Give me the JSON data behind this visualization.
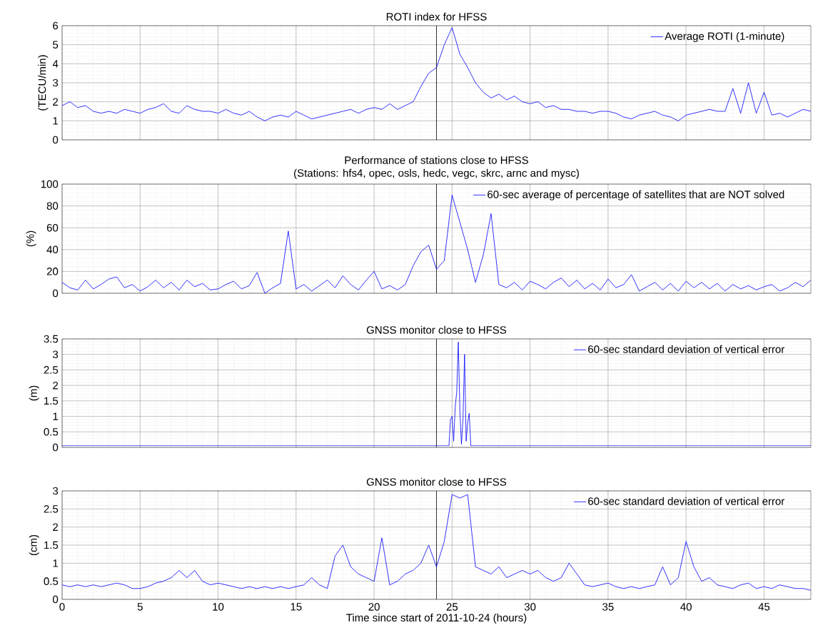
{
  "chart_data": [
    {
      "type": "line",
      "title": "ROTI index for HFSS",
      "ylabel": "(TECU/min)",
      "xlim": [
        0,
        48
      ],
      "xticks": [
        0,
        5,
        10,
        15,
        20,
        25,
        30,
        35,
        40,
        45
      ],
      "ylim": [
        0,
        6
      ],
      "yticks": [
        0,
        1,
        2,
        3,
        4,
        5,
        6
      ],
      "grid": true,
      "legend": "top right",
      "tick_labels": "y",
      "marker": "none",
      "line_style": "solid",
      "ref_lines": [
        {
          "axis": "x",
          "value": 24,
          "color": "#000000"
        }
      ],
      "x": [
        0,
        0.5,
        1,
        1.5,
        2,
        2.5,
        3,
        3.5,
        4,
        4.5,
        5,
        5.5,
        6,
        6.5,
        7,
        7.5,
        8,
        8.5,
        9,
        9.5,
        10,
        10.5,
        11,
        11.5,
        12,
        12.5,
        13,
        13.5,
        14,
        14.5,
        15,
        15.5,
        16,
        16.5,
        17,
        17.5,
        18,
        18.5,
        19,
        19.5,
        20,
        20.5,
        21,
        21.5,
        22,
        22.5,
        23,
        23.5,
        24,
        24.5,
        25,
        25.5,
        26,
        26.5,
        27,
        27.5,
        28,
        28.5,
        29,
        29.5,
        30,
        30.5,
        31,
        31.5,
        32,
        32.5,
        33,
        33.5,
        34,
        34.5,
        35,
        35.5,
        36,
        36.5,
        37,
        37.5,
        38,
        38.5,
        39,
        39.5,
        40,
        40.5,
        41,
        41.5,
        42,
        42.5,
        43,
        43.5,
        44,
        44.5,
        45,
        45.5,
        46,
        46.5,
        47,
        47.5,
        48
      ],
      "series": [
        {
          "name": "Average ROTI (1-minute)",
          "color": "#0000ff",
          "values": [
            1.8,
            2.0,
            1.7,
            1.8,
            1.5,
            1.4,
            1.5,
            1.4,
            1.6,
            1.5,
            1.4,
            1.6,
            1.7,
            1.9,
            1.5,
            1.4,
            1.8,
            1.6,
            1.5,
            1.5,
            1.4,
            1.6,
            1.4,
            1.3,
            1.5,
            1.2,
            1.0,
            1.2,
            1.3,
            1.2,
            1.5,
            1.3,
            1.1,
            1.2,
            1.3,
            1.4,
            1.5,
            1.6,
            1.4,
            1.6,
            1.7,
            1.6,
            1.9,
            1.6,
            1.8,
            2.0,
            2.8,
            3.5,
            3.8,
            5.0,
            5.9,
            4.5,
            3.8,
            3.0,
            2.5,
            2.2,
            2.4,
            2.1,
            2.3,
            2.0,
            1.9,
            2.0,
            1.7,
            1.8,
            1.6,
            1.6,
            1.5,
            1.5,
            1.4,
            1.5,
            1.5,
            1.4,
            1.2,
            1.1,
            1.3,
            1.4,
            1.5,
            1.3,
            1.2,
            1.0,
            1.3,
            1.4,
            1.5,
            1.6,
            1.5,
            1.5,
            2.7,
            1.4,
            3.0,
            1.4,
            2.5,
            1.3,
            1.4,
            1.2,
            1.4,
            1.6,
            1.5
          ]
        }
      ]
    },
    {
      "type": "line",
      "title": "Performance of stations close to HFSS",
      "subtitle": "(Stations: hfs4, opec, osls, hedc, vegc, skrc, arnc and mysc)",
      "ylabel": "(%)",
      "xlim": [
        0,
        48
      ],
      "xticks": [
        0,
        5,
        10,
        15,
        20,
        25,
        30,
        35,
        40,
        45
      ],
      "ylim": [
        0,
        100
      ],
      "yticks": [
        0,
        20,
        40,
        60,
        80,
        100
      ],
      "grid": true,
      "legend": "top right",
      "tick_labels": "y",
      "marker": "none",
      "line_style": "solid",
      "ref_lines": [
        {
          "axis": "x",
          "value": 24,
          "color": "#000000"
        }
      ],
      "x": [
        0,
        0.5,
        1,
        1.5,
        2,
        2.5,
        3,
        3.5,
        4,
        4.5,
        5,
        5.5,
        6,
        6.5,
        7,
        7.5,
        8,
        8.5,
        9,
        9.5,
        10,
        10.5,
        11,
        11.5,
        12,
        12.5,
        13,
        13.5,
        14,
        14.5,
        15,
        15.5,
        16,
        16.5,
        17,
        17.5,
        18,
        18.5,
        19,
        19.5,
        20,
        20.5,
        21,
        21.5,
        22,
        22.5,
        23,
        23.5,
        24,
        24.5,
        25,
        25.5,
        26,
        26.5,
        27,
        27.5,
        28,
        28.5,
        29,
        29.5,
        30,
        30.5,
        31,
        31.5,
        32,
        32.5,
        33,
        33.5,
        34,
        34.5,
        35,
        35.5,
        36,
        36.5,
        37,
        37.5,
        38,
        38.5,
        39,
        39.5,
        40,
        40.5,
        41,
        41.5,
        42,
        42.5,
        43,
        43.5,
        44,
        44.5,
        45,
        45.5,
        46,
        46.5,
        47,
        47.5,
        48
      ],
      "series": [
        {
          "name": "60-sec average of percentage of satellites that are NOT solved",
          "color": "#0000ff",
          "values": [
            10,
            5,
            3,
            12,
            4,
            8,
            13,
            15,
            5,
            8,
            2,
            6,
            12,
            5,
            10,
            3,
            12,
            6,
            9,
            3,
            4,
            8,
            11,
            4,
            7,
            19,
            0,
            5,
            9,
            57,
            4,
            8,
            2,
            7,
            12,
            5,
            16,
            8,
            3,
            12,
            20,
            4,
            7,
            3,
            8,
            25,
            38,
            44,
            22,
            30,
            90,
            65,
            40,
            10,
            35,
            73,
            8,
            5,
            10,
            3,
            11,
            8,
            4,
            10,
            14,
            6,
            12,
            4,
            9,
            3,
            13,
            5,
            8,
            17,
            2,
            6,
            10,
            3,
            9,
            2,
            11,
            5,
            10,
            4,
            9,
            2,
            8,
            4,
            7,
            3,
            6,
            8,
            2,
            5,
            10,
            6,
            12
          ]
        }
      ]
    },
    {
      "type": "line",
      "title": "GNSS monitor close to HFSS",
      "ylabel": "(m)",
      "xlim": [
        0,
        48
      ],
      "xticks": [
        0,
        5,
        10,
        15,
        20,
        25,
        30,
        35,
        40,
        45
      ],
      "ylim": [
        0,
        3.5
      ],
      "yticks": [
        0,
        0.5,
        1,
        1.5,
        2,
        2.5,
        3,
        3.5
      ],
      "grid": true,
      "legend": "top right",
      "tick_labels": "y",
      "marker": "none",
      "line_style": "solid",
      "ref_lines": [
        {
          "axis": "x",
          "value": 24,
          "color": "#000000"
        }
      ],
      "series": [
        {
          "name": "60-sec standard deviation of vertical error",
          "color": "#0000ff",
          "x": [
            0,
            5,
            10,
            15,
            20,
            24,
            24.8,
            24.9,
            25.0,
            25.1,
            25.2,
            25.3,
            25.4,
            25.5,
            25.6,
            25.7,
            25.8,
            25.9,
            26.0,
            26.1,
            26.2,
            30,
            35,
            40,
            45,
            48
          ],
          "values": [
            0.05,
            0.05,
            0.05,
            0.05,
            0.05,
            0.05,
            0.05,
            0.9,
            1.0,
            0.2,
            1.3,
            1.8,
            3.4,
            1.2,
            0.1,
            0.9,
            3.0,
            0.2,
            0.8,
            1.1,
            0.05,
            0.05,
            0.05,
            0.05,
            0.05,
            0.05
          ]
        }
      ]
    },
    {
      "type": "line",
      "title": "GNSS monitor close to HFSS",
      "xlabel": "Time since start of 2011-10-24 (hours)",
      "ylabel": "(cm)",
      "xlim": [
        0,
        48
      ],
      "xticks": [
        0,
        5,
        10,
        15,
        20,
        25,
        30,
        35,
        40,
        45
      ],
      "ylim": [
        0,
        3
      ],
      "yticks": [
        0,
        0.5,
        1,
        1.5,
        2,
        2.5,
        3
      ],
      "grid": true,
      "legend": "top right",
      "marker": "none",
      "line_style": "solid",
      "ref_lines": [
        {
          "axis": "x",
          "value": 24,
          "color": "#000000"
        }
      ],
      "x": [
        0,
        0.5,
        1,
        1.5,
        2,
        2.5,
        3,
        3.5,
        4,
        4.5,
        5,
        5.5,
        6,
        6.5,
        7,
        7.5,
        8,
        8.5,
        9,
        9.5,
        10,
        10.5,
        11,
        11.5,
        12,
        12.5,
        13,
        13.5,
        14,
        14.5,
        15,
        15.5,
        16,
        16.5,
        17,
        17.5,
        18,
        18.5,
        19,
        19.5,
        20,
        20.5,
        21,
        21.5,
        22,
        22.5,
        23,
        23.5,
        24,
        24.5,
        25,
        25.5,
        26,
        26.5,
        27,
        27.5,
        28,
        28.5,
        29,
        29.5,
        30,
        30.5,
        31,
        31.5,
        32,
        32.5,
        33,
        33.5,
        34,
        34.5,
        35,
        35.5,
        36,
        36.5,
        37,
        37.5,
        38,
        38.5,
        39,
        39.5,
        40,
        40.5,
        41,
        41.5,
        42,
        42.5,
        43,
        43.5,
        44,
        44.5,
        45,
        45.5,
        46,
        46.5,
        47,
        47.5,
        48
      ],
      "series": [
        {
          "name": "60-sec standard deviation of vertical error",
          "color": "#0000ff",
          "values": [
            0.4,
            0.35,
            0.4,
            0.35,
            0.4,
            0.35,
            0.4,
            0.45,
            0.4,
            0.3,
            0.3,
            0.35,
            0.45,
            0.5,
            0.6,
            0.8,
            0.6,
            0.8,
            0.5,
            0.4,
            0.45,
            0.4,
            0.35,
            0.3,
            0.35,
            0.3,
            0.35,
            0.3,
            0.35,
            0.3,
            0.35,
            0.4,
            0.6,
            0.4,
            0.3,
            1.2,
            1.5,
            0.9,
            0.7,
            0.6,
            0.5,
            1.7,
            0.4,
            0.5,
            0.7,
            0.8,
            1.0,
            1.5,
            0.9,
            1.6,
            2.9,
            2.8,
            2.9,
            0.9,
            0.8,
            0.7,
            0.9,
            0.6,
            0.7,
            0.8,
            0.7,
            0.8,
            0.6,
            0.5,
            0.6,
            1.0,
            0.7,
            0.4,
            0.35,
            0.4,
            0.45,
            0.35,
            0.3,
            0.35,
            0.3,
            0.35,
            0.4,
            0.9,
            0.4,
            0.6,
            1.6,
            0.9,
            0.5,
            0.6,
            0.4,
            0.35,
            0.3,
            0.4,
            0.45,
            0.3,
            0.35,
            0.3,
            0.4,
            0.35,
            0.3,
            0.3,
            0.25
          ]
        }
      ]
    }
  ]
}
